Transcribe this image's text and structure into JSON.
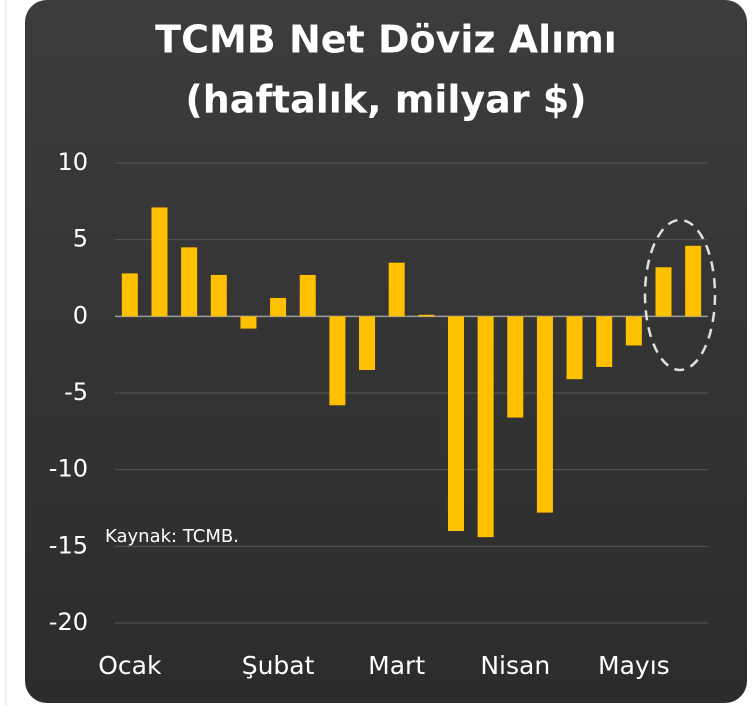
{
  "chart_data": {
    "type": "bar",
    "title": "TCMB Net Döviz Alımı",
    "subtitle": "(haftalık, milyar $)",
    "annotation": "Kaynak: TCMB.",
    "categories": [
      "Ocak",
      null,
      null,
      null,
      null,
      "Şubat",
      null,
      null,
      null,
      "Mart",
      null,
      null,
      null,
      "Nisan",
      null,
      null,
      null,
      "Mayıs",
      null,
      null
    ],
    "values": [
      2.8,
      7.1,
      4.5,
      2.7,
      -0.8,
      1.2,
      2.7,
      -5.8,
      -3.5,
      3.5,
      0.1,
      -14.0,
      -14.4,
      -6.6,
      -12.8,
      -4.1,
      -3.3,
      -1.9,
      3.2,
      4.6
    ],
    "color": "#ffc000",
    "ylim": [
      -20,
      10
    ],
    "yticks": [
      -20,
      -15,
      -10,
      -5,
      0,
      5,
      10
    ],
    "grid": true
  }
}
